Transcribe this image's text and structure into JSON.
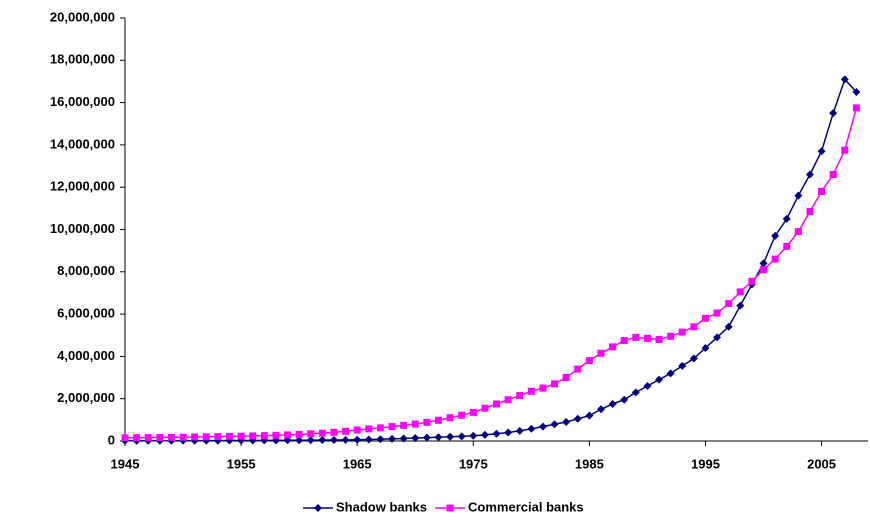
{
  "chart_data": {
    "type": "line",
    "x": [
      1945,
      1946,
      1947,
      1948,
      1949,
      1950,
      1951,
      1952,
      1953,
      1954,
      1955,
      1956,
      1957,
      1958,
      1959,
      1960,
      1961,
      1962,
      1963,
      1964,
      1965,
      1966,
      1967,
      1968,
      1969,
      1970,
      1971,
      1972,
      1973,
      1974,
      1975,
      1976,
      1977,
      1978,
      1979,
      1980,
      1981,
      1982,
      1983,
      1984,
      1985,
      1986,
      1987,
      1988,
      1989,
      1990,
      1991,
      1992,
      1993,
      1994,
      1995,
      1996,
      1997,
      1998,
      1999,
      2000,
      2001,
      2002,
      2003,
      2004,
      2005,
      2006,
      2007,
      2008
    ],
    "series": [
      {
        "name": "Shadow banks",
        "color": "#000080",
        "marker": "diamond",
        "values": [
          10000,
          11000,
          12000,
          13000,
          14000,
          15000,
          16000,
          18000,
          20000,
          22000,
          24000,
          26000,
          28000,
          31000,
          34000,
          37000,
          41000,
          45000,
          50000,
          55000,
          60000,
          70000,
          85000,
          100000,
          120000,
          140000,
          160000,
          180000,
          200000,
          220000,
          250000,
          290000,
          340000,
          400000,
          480000,
          580000,
          680000,
          790000,
          900000,
          1050000,
          1200000,
          1500000,
          1750000,
          1950000,
          2300000,
          2600000,
          2900000,
          3200000,
          3550000,
          3900000,
          4400000,
          4900000,
          5400000,
          6400000,
          7400000,
          8400000,
          9700000,
          10500000,
          11600000,
          12600000,
          13700000,
          15500000,
          17100000,
          16500000
        ]
      },
      {
        "name": "Commercial banks",
        "color": "#ff00ff",
        "marker": "square",
        "values": [
          150000,
          155000,
          160000,
          165000,
          170000,
          180000,
          190000,
          200000,
          210000,
          220000,
          230000,
          240000,
          255000,
          270000,
          290000,
          310000,
          340000,
          370000,
          410000,
          460000,
          520000,
          570000,
          620000,
          680000,
          740000,
          800000,
          880000,
          980000,
          1100000,
          1220000,
          1350000,
          1550000,
          1750000,
          1950000,
          2150000,
          2350000,
          2500000,
          2700000,
          3000000,
          3400000,
          3800000,
          4150000,
          4450000,
          4750000,
          4900000,
          4850000,
          4800000,
          4950000,
          5150000,
          5400000,
          5800000,
          6050000,
          6500000,
          7050000,
          7550000,
          8100000,
          8600000,
          9200000,
          9900000,
          10850000,
          11800000,
          12600000,
          13750000,
          15750000
        ]
      }
    ],
    "xlim": [
      1945,
      2009
    ],
    "xticks": [
      1945,
      1955,
      1965,
      1975,
      1985,
      1995,
      2005
    ],
    "ylim": [
      0,
      20000000
    ],
    "yticks": [
      0,
      {
        "value": 2000000,
        "label": "2,000,000"
      },
      {
        "value": 4000000,
        "label": "4,000,000"
      },
      {
        "value": 6000000,
        "label": "6,000,000"
      },
      {
        "value": 8000000,
        "label": "8,000,000"
      },
      {
        "value": 10000000,
        "label": "10,000,000"
      },
      {
        "value": 12000000,
        "label": "12,000,000"
      },
      {
        "value": 14000000,
        "label": "14,000,000"
      },
      {
        "value": 16000000,
        "label": "16,000,000"
      },
      {
        "value": 18000000,
        "label": "18,000,000"
      },
      {
        "value": 20000000,
        "label": "20,000,000"
      }
    ],
    "grid": false,
    "legend": "bottom"
  }
}
